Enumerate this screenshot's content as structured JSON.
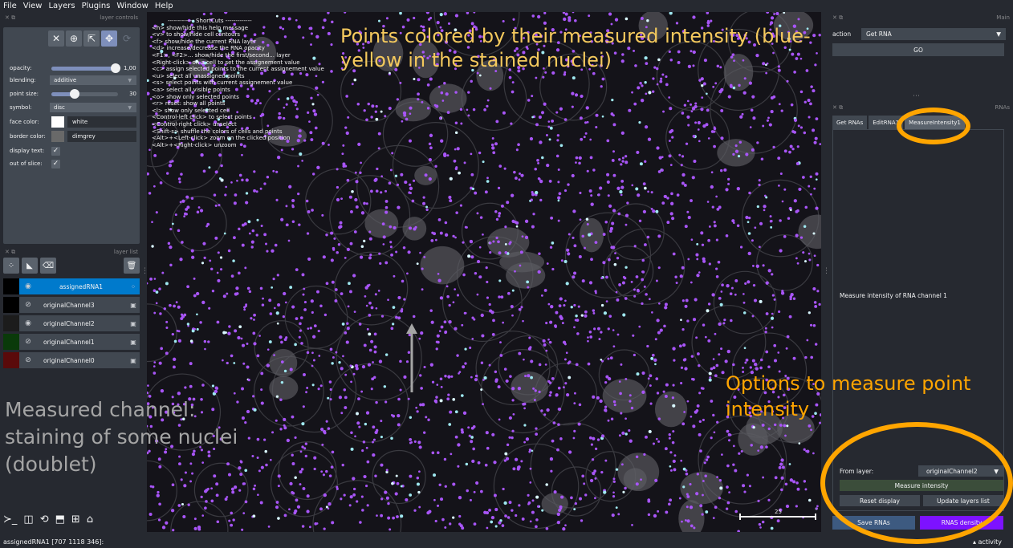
{
  "menubar": [
    "File",
    "View",
    "Layers",
    "Plugins",
    "Window",
    "Help"
  ],
  "left_dock": {
    "layer_controls_title": "layer controls",
    "opacity": {
      "label": "opacity:",
      "value": "1,00",
      "level": 1.0
    },
    "blending": {
      "label": "blending:",
      "value": "additive"
    },
    "point_size": {
      "label": "point size:",
      "value": "30",
      "level": 0.35
    },
    "symbol": {
      "label": "symbol:",
      "value": "disc"
    },
    "face_color": {
      "label": "face color:",
      "value": "white",
      "color": "#ffffff"
    },
    "border_color": {
      "label": "border color:",
      "value": "dimgrey",
      "color": "#696969"
    },
    "display_text": {
      "label": "display text:"
    },
    "out_of_slice": {
      "label": "out of slice:"
    },
    "layer_list_title": "layer list",
    "layers": [
      {
        "name": "assignedRNA1",
        "selected": true,
        "visible": true,
        "type": "points"
      },
      {
        "name": "originalChannel3",
        "selected": false,
        "visible": false,
        "type": "image"
      },
      {
        "name": "originalChannel2",
        "selected": false,
        "visible": true,
        "type": "image"
      },
      {
        "name": "originalChannel1",
        "selected": false,
        "visible": false,
        "type": "image"
      },
      {
        "name": "originalChannel0",
        "selected": false,
        "visible": false,
        "type": "image"
      }
    ]
  },
  "shortcuts": {
    "title": "------------- ShortCuts -------------",
    "lines": [
      "<h> show/hide this help message",
      "<v> to show/hide cell contours",
      "<f> show/hide the current RNA layer",
      "<d> increase/decrease the RNA opacity",
      "<F1>, <F2>... show/hide the first/second... layer",
      "<Right-click> on a cell to set the assignement value",
      "<c> assign selected points to the current assignement value",
      "<u> select all unassigned points",
      "<s> select points with current assignement value",
      "<a> select all visible points",
      "<o> show only selected points",
      "<r> reset: show all points",
      "<l> show only selected cell",
      "<Control-left click> to select points",
      "<Control-right click> unselect",
      "<Shift-s> shuffle the colors of cells and points",
      "<Alt>+<Left-click> zoom on the clicked position",
      "<Alt>+<Right-click> unzoom"
    ]
  },
  "canvas": {
    "scale_label": "25"
  },
  "right_dock": {
    "main_title": "Main",
    "action_label": "action",
    "action_value": "Get RNA",
    "go_label": "GO",
    "rnas_title": "RNAs",
    "tabs": [
      "Get RNAs",
      "EditRNA1",
      "MeasureIntensity1"
    ],
    "caption": "Measure intensity of RNA channel 1",
    "from_layer_label": "From layer:",
    "from_layer_value": "originalChannel2",
    "measure_label": "Measure intensity",
    "reset_label": "Reset display",
    "update_label": "Update layers list",
    "save_label": "Save RNAs",
    "density_label": "RNAS density"
  },
  "statusbar": {
    "left": "assignedRNA1    [707 1118 346]:",
    "right": "▴ activity"
  },
  "annotations": {
    "top": "Points colored by their measured intensity (blue-yellow in the stained nuclei)",
    "right": "Options to measure point intensity",
    "left": "Measured channel: staining of some nuclei (doublet)"
  },
  "colors": {
    "accent": "#007acc",
    "annotation_orange": "#ffa500",
    "annotation_yellow": "#f4c95d",
    "points": "#a855f7",
    "density_button": "#7d12ff"
  }
}
